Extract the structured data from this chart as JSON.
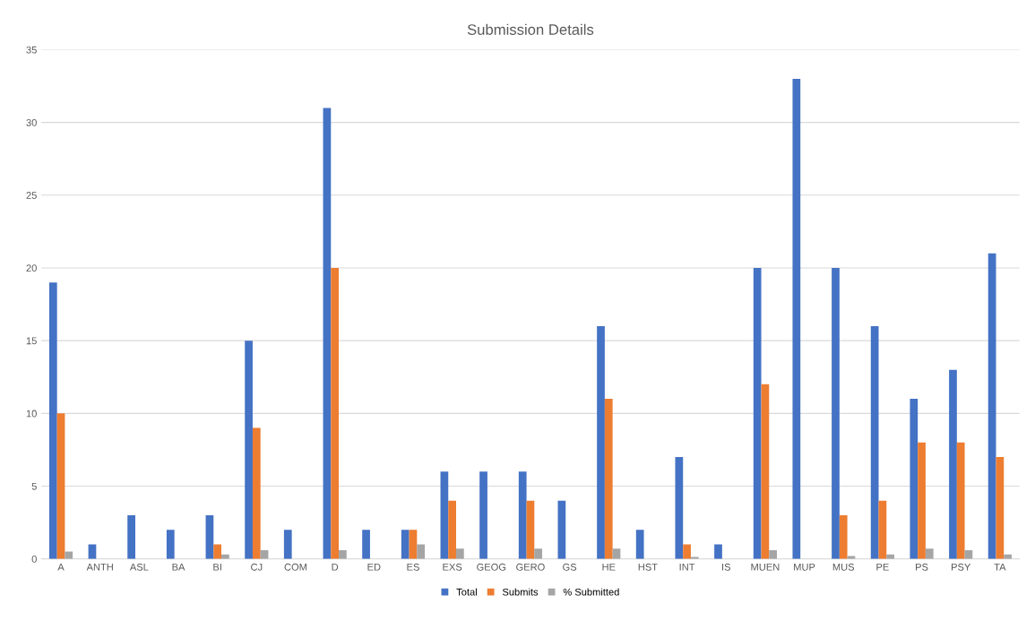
{
  "chart_data": {
    "type": "bar",
    "title": "Submission Details",
    "categories": [
      "A",
      "ANTH",
      "ASL",
      "BA",
      "BI",
      "CJ",
      "COM",
      "D",
      "ED",
      "ES",
      "EXS",
      "GEOG",
      "GERO",
      "GS",
      "HE",
      "HST",
      "INT",
      "IS",
      "MUEN",
      "MUP",
      "MUS",
      "PE",
      "PS",
      "PSY",
      "TA"
    ],
    "series": [
      {
        "name": "Total",
        "color": "#4472c4",
        "values": [
          19,
          1,
          3,
          2,
          3,
          15,
          2,
          31,
          2,
          2,
          6,
          6,
          6,
          4,
          16,
          2,
          7,
          1,
          20,
          33,
          20,
          16,
          11,
          13,
          21
        ]
      },
      {
        "name": "Submits",
        "color": "#ed7d31",
        "values": [
          10,
          0,
          0,
          0,
          1,
          9,
          0,
          20,
          0,
          2,
          4,
          0,
          4,
          0,
          11,
          0,
          1,
          0,
          12,
          0,
          3,
          4,
          8,
          8,
          7
        ]
      },
      {
        "name": "% Submitted",
        "color": "#a5a5a5",
        "values": [
          0.5,
          0,
          0,
          0,
          0.3,
          0.6,
          0,
          0.6,
          0,
          1,
          0.7,
          0,
          0.7,
          0,
          0.7,
          0,
          0.14,
          0,
          0.6,
          0,
          0.2,
          0.3,
          0.7,
          0.6,
          0.3
        ]
      }
    ],
    "ylim": [
      0,
      35
    ],
    "yticks": [
      0,
      5,
      10,
      15,
      20,
      25,
      30,
      35
    ],
    "grid": "y",
    "legend": "bottom"
  }
}
